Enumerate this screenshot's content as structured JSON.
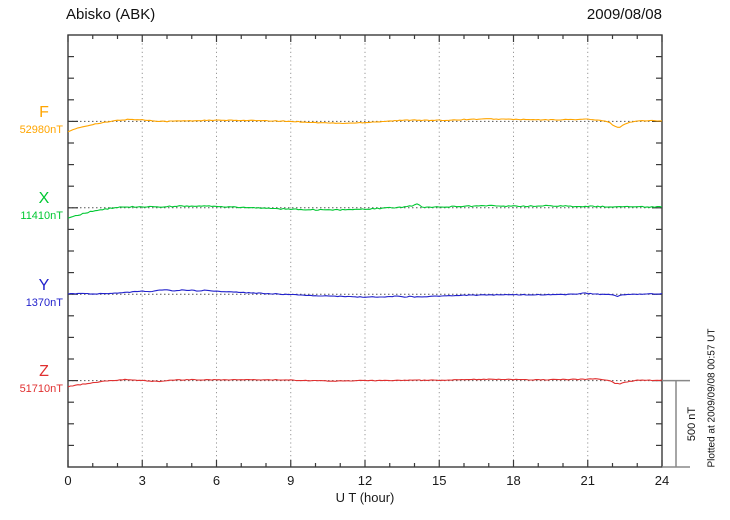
{
  "header": {
    "title": "Abisko (ABK)",
    "date": "2009/08/08"
  },
  "chart_data": {
    "type": "line",
    "title": "Abisko (ABK)",
    "date": "2009/08/08",
    "xlabel": "U T (hour)",
    "x_range": [
      0,
      24
    ],
    "x_tick_labels": [
      "0",
      "3",
      "6",
      "9",
      "12",
      "15",
      "18",
      "21",
      "24"
    ],
    "grid_hours": [
      3,
      6,
      9,
      12,
      15,
      18,
      21
    ],
    "scale_bar": {
      "label": "500 nT",
      "value_nT": 500
    },
    "plotted_at": "Plotted at 2009/09/08 00:57 UT",
    "series": [
      {
        "name": "F",
        "label": "F",
        "baseline_label": "52980nT",
        "baseline_nT": 52980,
        "color": "#FFA500",
        "noise_nT": 2.2,
        "offsets_nT": [
          [
            0,
            -58
          ],
          [
            0.5,
            -35
          ],
          [
            1,
            -17
          ],
          [
            1.5,
            -6
          ],
          [
            2,
            6
          ],
          [
            2.5,
            12
          ],
          [
            3,
            9
          ],
          [
            3.5,
            3
          ],
          [
            4,
            0
          ],
          [
            4.5,
            3
          ],
          [
            5,
            3
          ],
          [
            5.5,
            6
          ],
          [
            6,
            6
          ],
          [
            6.5,
            6
          ],
          [
            7,
            6
          ],
          [
            7.5,
            5
          ],
          [
            8,
            3
          ],
          [
            8.5,
            2
          ],
          [
            9,
            0
          ],
          [
            9.5,
            -3
          ],
          [
            10,
            -7
          ],
          [
            10.5,
            -9
          ],
          [
            11,
            -11
          ],
          [
            11.5,
            -10
          ],
          [
            12,
            -6
          ],
          [
            12.5,
            -2
          ],
          [
            13,
            2
          ],
          [
            13.5,
            6
          ],
          [
            14,
            9
          ],
          [
            14.5,
            6
          ],
          [
            15,
            6
          ],
          [
            15.5,
            8
          ],
          [
            16,
            11
          ],
          [
            16.5,
            13
          ],
          [
            17,
            14
          ],
          [
            17.5,
            13
          ],
          [
            18,
            12
          ],
          [
            18.5,
            10
          ],
          [
            19,
            9
          ],
          [
            19.5,
            9
          ],
          [
            20,
            10
          ],
          [
            20.5,
            11
          ],
          [
            21,
            13
          ],
          [
            21.3,
            8
          ],
          [
            21.6,
            4
          ],
          [
            21.9,
            -8
          ],
          [
            22.1,
            -30
          ],
          [
            22.3,
            -34
          ],
          [
            22.5,
            -14
          ],
          [
            22.8,
            -2
          ],
          [
            23,
            3
          ],
          [
            23.5,
            4
          ],
          [
            24,
            5
          ]
        ]
      },
      {
        "name": "X",
        "label": "X",
        "baseline_label": "11410nT",
        "baseline_nT": 11410,
        "color": "#00C832",
        "noise_nT": 3.2,
        "offsets_nT": [
          [
            0,
            -60
          ],
          [
            0.5,
            -38
          ],
          [
            1,
            -19
          ],
          [
            1.5,
            -7
          ],
          [
            2,
            2
          ],
          [
            2.5,
            5
          ],
          [
            3,
            6
          ],
          [
            3.5,
            4
          ],
          [
            4,
            7
          ],
          [
            4.5,
            9
          ],
          [
            5,
            8
          ],
          [
            5.5,
            10
          ],
          [
            6,
            7
          ],
          [
            6.5,
            4
          ],
          [
            7,
            2
          ],
          [
            7.5,
            0
          ],
          [
            8,
            -3
          ],
          [
            8.5,
            -6
          ],
          [
            9,
            -8
          ],
          [
            9.5,
            -10
          ],
          [
            10,
            -12
          ],
          [
            10.5,
            -13
          ],
          [
            11,
            -12
          ],
          [
            11.5,
            -12
          ],
          [
            12,
            -9
          ],
          [
            12.5,
            -4
          ],
          [
            13,
            0
          ],
          [
            13.5,
            4
          ],
          [
            13.9,
            10
          ],
          [
            14.1,
            22
          ],
          [
            14.3,
            6
          ],
          [
            14.6,
            3
          ],
          [
            15,
            4
          ],
          [
            15.5,
            6
          ],
          [
            16,
            8
          ],
          [
            16.5,
            11
          ],
          [
            17,
            12
          ],
          [
            17.5,
            11
          ],
          [
            18,
            10
          ],
          [
            18.5,
            9
          ],
          [
            19,
            10
          ],
          [
            19.5,
            12
          ],
          [
            20,
            10
          ],
          [
            20.5,
            9
          ],
          [
            21,
            8
          ],
          [
            21.5,
            7
          ],
          [
            22,
            5
          ],
          [
            22.5,
            6
          ],
          [
            23,
            6
          ],
          [
            23.5,
            5
          ],
          [
            24,
            6
          ]
        ]
      },
      {
        "name": "Y",
        "label": "Y",
        "baseline_label": "1370nT",
        "baseline_nT": 1370,
        "color": "#2222CC",
        "noise_nT": 2.0,
        "offsets_nT": [
          [
            0,
            2
          ],
          [
            0.5,
            3
          ],
          [
            1,
            2
          ],
          [
            1.5,
            3
          ],
          [
            2,
            6
          ],
          [
            2.5,
            12
          ],
          [
            3,
            18
          ],
          [
            3.3,
            14
          ],
          [
            3.6,
            22
          ],
          [
            4,
            24
          ],
          [
            4.3,
            18
          ],
          [
            4.6,
            24
          ],
          [
            5,
            23
          ],
          [
            5.3,
            18
          ],
          [
            5.6,
            24
          ],
          [
            5.8,
            20
          ],
          [
            6,
            18
          ],
          [
            6.5,
            14
          ],
          [
            7,
            10
          ],
          [
            7.5,
            7
          ],
          [
            8,
            4
          ],
          [
            8.5,
            1
          ],
          [
            9,
            -2
          ],
          [
            9.5,
            -5
          ],
          [
            10,
            -8
          ],
          [
            10.5,
            -11
          ],
          [
            11,
            -13
          ],
          [
            11.5,
            -15
          ],
          [
            12,
            -16
          ],
          [
            12.5,
            -16
          ],
          [
            13,
            -15
          ],
          [
            13.3,
            -11
          ],
          [
            13.6,
            -17
          ],
          [
            13.8,
            -12
          ],
          [
            14,
            -16
          ],
          [
            14.5,
            -14
          ],
          [
            15,
            -10
          ],
          [
            15.5,
            -8
          ],
          [
            16,
            -6
          ],
          [
            16.5,
            -5
          ],
          [
            17,
            -4
          ],
          [
            17.5,
            -4
          ],
          [
            18,
            -4
          ],
          [
            18.5,
            -3
          ],
          [
            19,
            -3
          ],
          [
            19.5,
            -3
          ],
          [
            20,
            -2
          ],
          [
            20.5,
            0
          ],
          [
            20.8,
            8
          ],
          [
            21,
            4
          ],
          [
            21.3,
            1
          ],
          [
            21.6,
            -1
          ],
          [
            22,
            -3
          ],
          [
            22.2,
            -14
          ],
          [
            22.4,
            -4
          ],
          [
            22.7,
            -1
          ],
          [
            23,
            0
          ],
          [
            23.5,
            1
          ],
          [
            24,
            2
          ]
        ]
      },
      {
        "name": "Z",
        "label": "Z",
        "baseline_label": "51710nT",
        "baseline_nT": 51710,
        "color": "#E03030",
        "noise_nT": 2.0,
        "offsets_nT": [
          [
            0,
            -35
          ],
          [
            0.5,
            -23
          ],
          [
            1,
            -12
          ],
          [
            1.5,
            -2
          ],
          [
            2,
            3
          ],
          [
            2.3,
            6
          ],
          [
            2.6,
            4
          ],
          [
            3,
            2
          ],
          [
            3.3,
            -3
          ],
          [
            3.6,
            -5
          ],
          [
            3.8,
            -3
          ],
          [
            4,
            1
          ],
          [
            4.5,
            4
          ],
          [
            5,
            5
          ],
          [
            5.5,
            4
          ],
          [
            6,
            5
          ],
          [
            6.5,
            5
          ],
          [
            7,
            5
          ],
          [
            7.5,
            5
          ],
          [
            8,
            4
          ],
          [
            8.5,
            4
          ],
          [
            9,
            3
          ],
          [
            9.5,
            1
          ],
          [
            10,
            -1
          ],
          [
            10.5,
            -2
          ],
          [
            11,
            -2
          ],
          [
            11.5,
            -1
          ],
          [
            12,
            0
          ],
          [
            12.5,
            0
          ],
          [
            13,
            1
          ],
          [
            13.5,
            1
          ],
          [
            14,
            2
          ],
          [
            14.5,
            2
          ],
          [
            15,
            2
          ],
          [
            15.5,
            3
          ],
          [
            16,
            5
          ],
          [
            16.5,
            7
          ],
          [
            17,
            8
          ],
          [
            17.5,
            7
          ],
          [
            18,
            6
          ],
          [
            18.5,
            5
          ],
          [
            19,
            5
          ],
          [
            19.5,
            6
          ],
          [
            20,
            6
          ],
          [
            20.5,
            7
          ],
          [
            21,
            8
          ],
          [
            21.3,
            11
          ],
          [
            21.6,
            5
          ],
          [
            21.9,
            -3
          ],
          [
            22.1,
            -16
          ],
          [
            22.3,
            -20
          ],
          [
            22.5,
            -9
          ],
          [
            22.8,
            -2
          ],
          [
            23,
            1
          ],
          [
            23.5,
            2
          ],
          [
            24,
            2
          ]
        ]
      }
    ]
  }
}
